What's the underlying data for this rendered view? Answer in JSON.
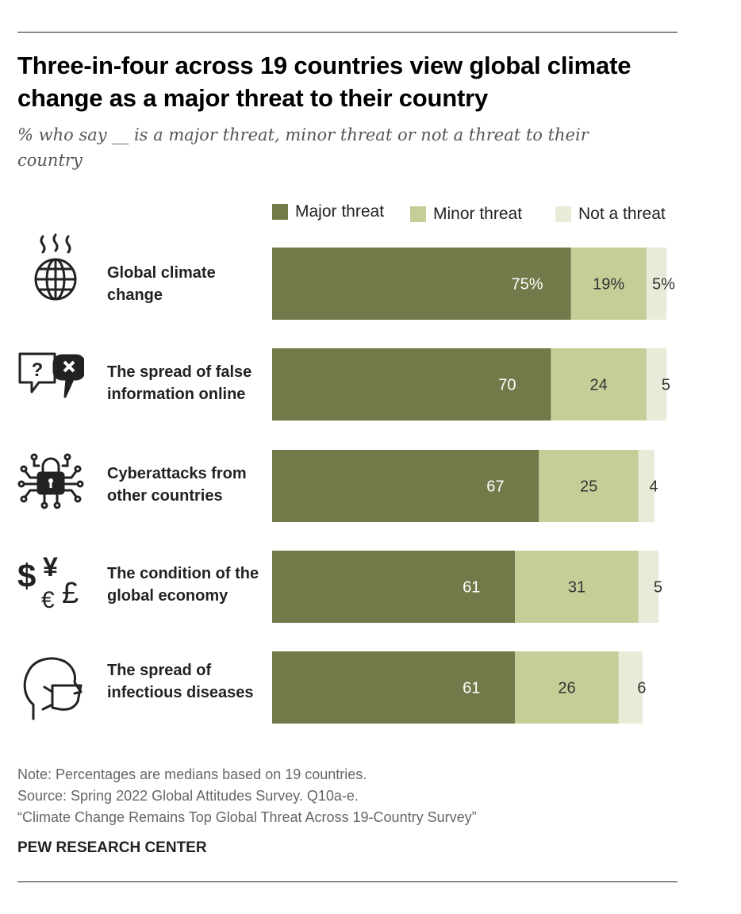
{
  "title": "Three-in-four across 19 countries view global climate change as a major threat to their country",
  "subtitle": "% who say __ is a major threat, minor threat or not a threat to their country",
  "legend": {
    "major": "Major threat",
    "minor": "Minor threat",
    "not": "Not a threat"
  },
  "colors": {
    "major": "#74794a",
    "minor": "#c4cf98",
    "not": "#e8ebd8",
    "label_on_dark": "#ffffff",
    "label_on_light": "#333333"
  },
  "icons": {
    "row0": "globe-heat-icon",
    "row1": "misinformation-speech-bubbles-icon",
    "row2": "cyber-lock-circuit-icon",
    "row3": "currency-symbols-icon",
    "row4": "face-mask-icon"
  },
  "chart_data": {
    "type": "bar",
    "orientation": "horizontal",
    "stacked": true,
    "title": "Three-in-four across 19 countries view global climate change as a major threat to their country",
    "xlabel": "",
    "ylabel": "",
    "xlim": [
      0,
      100
    ],
    "grid": false,
    "legend_position": "top-right",
    "categories": [
      "Global climate change",
      "The spread of false information online",
      "Cyberattacks from other countries",
      "The condition of the global economy",
      "The spread of infectious diseases"
    ],
    "series": [
      {
        "name": "Major threat",
        "values": [
          75,
          70,
          67,
          61,
          61
        ]
      },
      {
        "name": "Minor threat",
        "values": [
          19,
          24,
          25,
          31,
          26
        ]
      },
      {
        "name": "Not a threat",
        "values": [
          5,
          5,
          4,
          5,
          6
        ]
      }
    ],
    "value_labels": [
      [
        "75%",
        "19%",
        "5%"
      ],
      [
        "70",
        "24",
        "5"
      ],
      [
        "67",
        "25",
        "4"
      ],
      [
        "61",
        "31",
        "5"
      ],
      [
        "61",
        "26",
        "6"
      ]
    ]
  },
  "footer": {
    "note": "Note: Percentages are medians based on 19 countries.",
    "source": "Source: Spring 2022 Global Attitudes Survey. Q10a-e.",
    "report": "“Climate Change Remains Top Global Threat Across 19-Country Survey”",
    "org": "PEW RESEARCH CENTER"
  }
}
